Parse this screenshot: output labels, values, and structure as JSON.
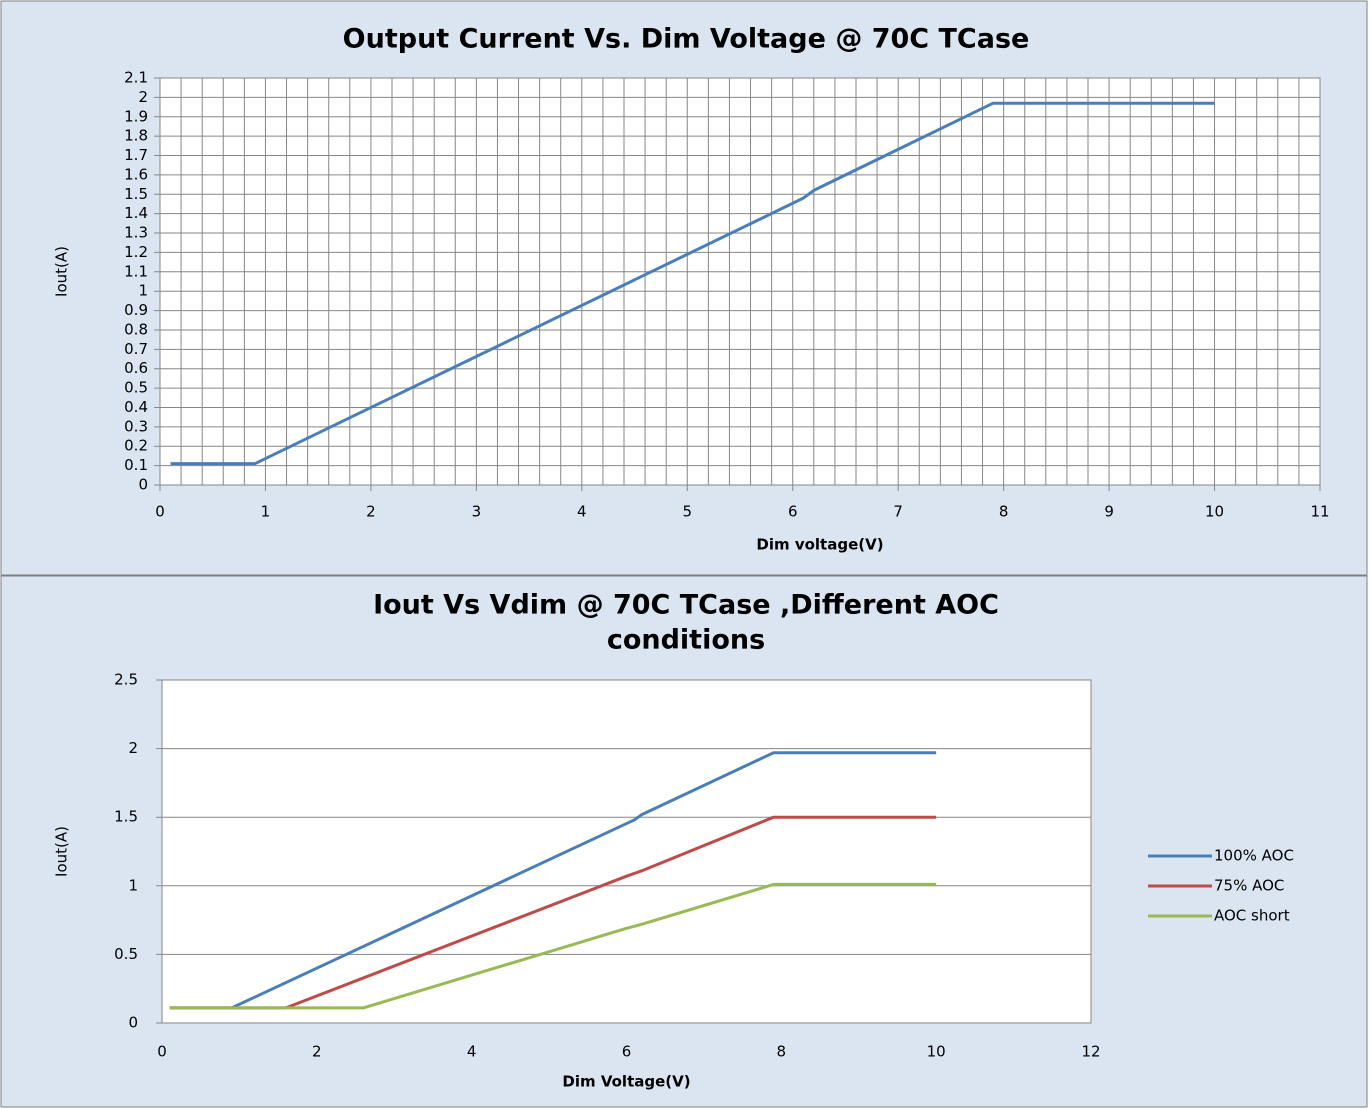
{
  "chart_data": [
    {
      "type": "line",
      "title": [
        "Output Current Vs. Dim Voltage @ 70C TCase"
      ],
      "xlabel": "Dim voltage(V)",
      "ylabel": "Iout(A)",
      "xlim": [
        0,
        11
      ],
      "xticks": [
        0,
        1,
        2,
        3,
        4,
        5,
        6,
        7,
        8,
        9,
        10,
        11
      ],
      "ylim": [
        0,
        2.1
      ],
      "yticks": [
        0,
        0.1,
        0.2,
        0.3,
        0.4,
        0.5,
        0.6,
        0.7,
        0.8,
        0.9,
        1,
        1.1,
        1.2,
        1.3,
        1.4,
        1.5,
        1.6,
        1.7,
        1.8,
        1.9,
        2,
        2.1
      ],
      "grid": true,
      "legend": false,
      "series": [
        {
          "name": "100% AOC",
          "color": "#4a7ebb",
          "x": [
            0.1,
            0.9,
            6.1,
            6.2,
            7.9,
            8,
            10
          ],
          "values": [
            0.11,
            0.11,
            1.48,
            1.52,
            1.97,
            1.97,
            1.97
          ]
        }
      ]
    },
    {
      "type": "line",
      "title": [
        "Iout Vs Vdim @ 70C  TCase ,Different AOC",
        "conditions"
      ],
      "xlabel": "Dim Voltage(V)",
      "ylabel": "Iout(A)",
      "xlim": [
        0,
        12
      ],
      "xticks": [
        0,
        2,
        4,
        6,
        8,
        10,
        12
      ],
      "ylim": [
        0,
        2.5
      ],
      "yticks": [
        0,
        0.5,
        1,
        1.5,
        2,
        2.5
      ],
      "grid": true,
      "legend": "right",
      "series": [
        {
          "name": "100% AOC",
          "color": "#4a7ebb",
          "x": [
            0.1,
            0.9,
            6.1,
            6.2,
            7.9,
            8,
            10
          ],
          "values": [
            0.11,
            0.11,
            1.48,
            1.52,
            1.97,
            1.97,
            1.97
          ]
        },
        {
          "name": "75% AOC",
          "color": "#be4b48",
          "x": [
            0.1,
            1.6,
            6,
            6.2,
            7.9,
            10
          ],
          "values": [
            0.11,
            0.11,
            1.07,
            1.11,
            1.5,
            1.5
          ]
        },
        {
          "name": "AOC short",
          "color": "#98b954",
          "x": [
            0.1,
            2.6,
            6,
            6.2,
            7.9,
            10
          ],
          "values": [
            0.11,
            0.11,
            0.69,
            0.72,
            1.01,
            1.01
          ]
        }
      ]
    }
  ]
}
